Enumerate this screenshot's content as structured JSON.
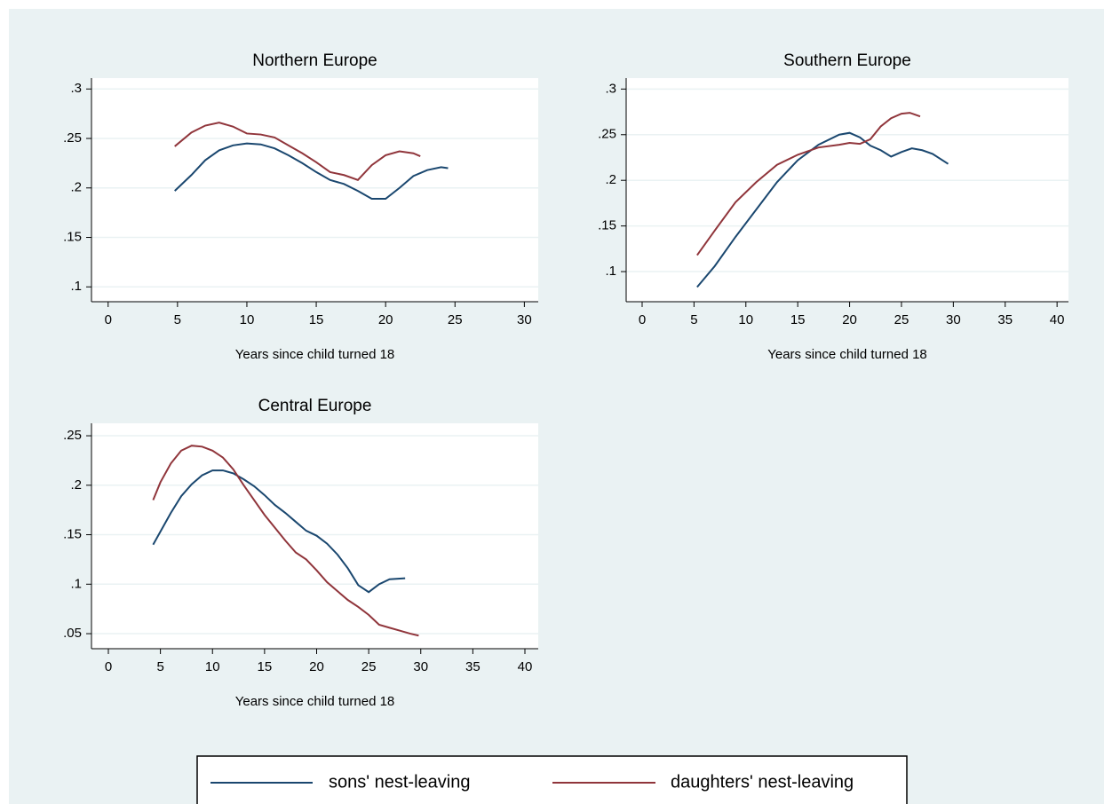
{
  "chart_data": [
    {
      "type": "line",
      "title": "Northern Europe",
      "x_label": "Years since child turned 18",
      "grid": true,
      "xlim": [
        -1.2,
        31
      ],
      "xticks": [
        0,
        5,
        10,
        15,
        20,
        25,
        30
      ],
      "ylim": [
        0.085,
        0.311
      ],
      "yticks": [
        {
          "value": 0.1,
          "label": ".1"
        },
        {
          "value": 0.15,
          "label": ".15"
        },
        {
          "value": 0.2,
          "label": ".2"
        },
        {
          "value": 0.25,
          "label": ".25"
        },
        {
          "value": 0.3,
          "label": ".3"
        }
      ],
      "series": [
        {
          "name": "sons' nest-leaving",
          "color": "#1a476f",
          "x": [
            4.8,
            6,
            7,
            8,
            9,
            10,
            11,
            12,
            13,
            14,
            15,
            16,
            17,
            18,
            19,
            20,
            21,
            22,
            23,
            24,
            24.5
          ],
          "values": [
            0.197,
            0.213,
            0.228,
            0.238,
            0.243,
            0.245,
            0.244,
            0.24,
            0.233,
            0.225,
            0.216,
            0.208,
            0.204,
            0.197,
            0.189,
            0.189,
            0.2,
            0.212,
            0.218,
            0.221,
            0.22
          ]
        },
        {
          "name": "daughters' nest-leaving",
          "color": "#90353b",
          "x": [
            4.8,
            6,
            7,
            8,
            9,
            10,
            11,
            12,
            13,
            14,
            15,
            16,
            17,
            18,
            19,
            20,
            21,
            22,
            22.5
          ],
          "values": [
            0.242,
            0.256,
            0.263,
            0.266,
            0.262,
            0.255,
            0.254,
            0.251,
            0.243,
            0.235,
            0.226,
            0.216,
            0.213,
            0.208,
            0.223,
            0.233,
            0.237,
            0.235,
            0.232
          ]
        }
      ]
    },
    {
      "type": "line",
      "title": "Southern Europe",
      "x_label": "Years since child turned 18",
      "grid": true,
      "xlim": [
        -1.54,
        41.1
      ],
      "xticks": [
        0,
        5,
        10,
        15,
        20,
        25,
        30,
        35,
        40
      ],
      "ylim": [
        0.067,
        0.312
      ],
      "yticks": [
        {
          "value": 0.1,
          "label": ".1"
        },
        {
          "value": 0.15,
          "label": ".15"
        },
        {
          "value": 0.2,
          "label": ".2"
        },
        {
          "value": 0.25,
          "label": ".25"
        },
        {
          "value": 0.3,
          "label": ".3"
        }
      ],
      "series": [
        {
          "color": "#1a476f",
          "x": [
            5.3,
            7,
            9,
            11,
            13,
            15,
            17,
            19,
            20,
            21,
            22,
            23,
            24,
            25,
            26,
            27,
            28,
            29.5
          ],
          "values": [
            0.083,
            0.106,
            0.138,
            0.168,
            0.198,
            0.222,
            0.239,
            0.25,
            0.252,
            0.247,
            0.238,
            0.233,
            0.226,
            0.231,
            0.235,
            0.233,
            0.229,
            0.218
          ]
        },
        {
          "color": "#90353b",
          "x": [
            5.3,
            7,
            9,
            11,
            13,
            15,
            17,
            19,
            20,
            21,
            22,
            23,
            24,
            25,
            25.8,
            26.8
          ],
          "values": [
            0.118,
            0.145,
            0.176,
            0.198,
            0.217,
            0.228,
            0.236,
            0.239,
            0.241,
            0.24,
            0.245,
            0.259,
            0.268,
            0.273,
            0.274,
            0.27
          ]
        }
      ]
    },
    {
      "type": "line",
      "title": "Central Europe",
      "x_label": "Years since child turned 18",
      "grid": true,
      "xlim": [
        -1.62,
        41.28
      ],
      "xticks": [
        0,
        5,
        10,
        15,
        20,
        25,
        30,
        35,
        40
      ],
      "ylim": [
        0.0348,
        0.2626
      ],
      "yticks": [
        {
          "value": 0.05,
          "label": ".05"
        },
        {
          "value": 0.1,
          "label": ".1"
        },
        {
          "value": 0.15,
          "label": ".15"
        },
        {
          "value": 0.2,
          "label": ".2"
        },
        {
          "value": 0.25,
          "label": ".25"
        }
      ],
      "series": [
        {
          "color": "#1a476f",
          "x": [
            4.3,
            6,
            7,
            8,
            9,
            10,
            11,
            12,
            13,
            14,
            15,
            16,
            17,
            18,
            19,
            20,
            21,
            22,
            23,
            24,
            25,
            26,
            27,
            28.5
          ],
          "values": [
            0.14,
            0.172,
            0.189,
            0.201,
            0.21,
            0.215,
            0.215,
            0.212,
            0.206,
            0.199,
            0.19,
            0.18,
            0.172,
            0.163,
            0.154,
            0.149,
            0.141,
            0.13,
            0.116,
            0.099,
            0.092,
            0.1,
            0.105,
            0.106
          ]
        },
        {
          "color": "#90353b",
          "x": [
            4.3,
            5,
            6,
            7,
            8,
            9,
            10,
            11,
            12,
            13,
            14,
            15,
            16,
            17,
            18,
            19,
            20,
            21,
            22,
            23,
            24,
            25,
            26,
            27,
            28,
            29,
            29.8
          ],
          "values": [
            0.185,
            0.203,
            0.222,
            0.235,
            0.24,
            0.239,
            0.235,
            0.228,
            0.216,
            0.2,
            0.185,
            0.17,
            0.157,
            0.144,
            0.132,
            0.125,
            0.114,
            0.102,
            0.093,
            0.084,
            0.077,
            0.069,
            0.059,
            0.056,
            0.053,
            0.05,
            0.048
          ]
        }
      ]
    }
  ]
}
